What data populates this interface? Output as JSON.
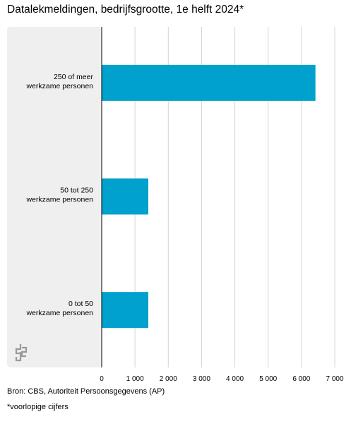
{
  "title": "Datalekmeldingen, bedrijfsgrootte, 1e helft 2024*",
  "source": "Bron: CBS, Autoriteit Persoonsgegevens (AP)",
  "footnote": "*voorlopige cijfers",
  "colors": {
    "bar": "#00a1cd",
    "panel": "#efefef",
    "grid": "#d4d4d4",
    "axis": "#000000"
  },
  "logo_icon": "cbs-logo-icon",
  "chart_data": {
    "type": "bar",
    "orientation": "horizontal",
    "title": "Datalekmeldingen, bedrijfsgrootte, 1e helft 2024*",
    "categories": [
      [
        "250 of meer",
        "werkzame personen"
      ],
      [
        "50 tot 250",
        "werkzame personen"
      ],
      [
        "0 tot 50",
        "werkzame personen"
      ]
    ],
    "values": [
      6420,
      1400,
      1400
    ],
    "xlim": [
      0,
      7000
    ],
    "xticks": [
      0,
      1000,
      2000,
      3000,
      4000,
      5000,
      6000,
      7000
    ],
    "xtick_labels": [
      "0",
      "1 000",
      "2 000",
      "3 000",
      "4 000",
      "5 000",
      "6 000",
      "7 000"
    ],
    "grid": true,
    "legend": "none"
  }
}
